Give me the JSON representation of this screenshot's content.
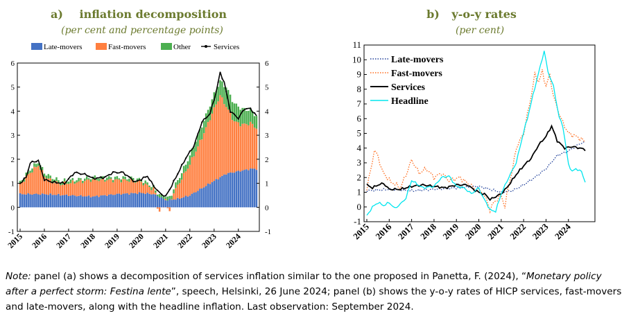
{
  "chart_data": [
    {
      "type": "bar",
      "panel_label": "a)",
      "title": "inflation decomposition",
      "subtitle": "(per cent and percentage points)",
      "ylim": [
        -1,
        6
      ],
      "yticks": [
        "-1",
        "0",
        "1",
        "2",
        "3",
        "4",
        "5",
        "6"
      ],
      "xtick_labels": [
        "2015",
        "2016",
        "2017",
        "2018",
        "2019",
        "2020",
        "2021",
        "2022",
        "2023",
        "2024"
      ],
      "x_start": "2015-01",
      "x_end": "2024-09",
      "stacked": true,
      "legend_position": "top",
      "colors": {
        "late": "#4472c4",
        "fast": "#ff7f3f",
        "other": "#4caf50",
        "services": "#000000"
      },
      "legend": [
        "Late-movers",
        "Fast-movers",
        "Other",
        "Services"
      ],
      "series": [
        {
          "name": "Late-movers",
          "anchors": [
            [
              0,
              0.55
            ],
            [
              12,
              0.55
            ],
            [
              24,
              0.5
            ],
            [
              36,
              0.45
            ],
            [
              48,
              0.55
            ],
            [
              60,
              0.6
            ],
            [
              66,
              0.55
            ],
            [
              70,
              0.4
            ],
            [
              72,
              0.3
            ],
            [
              78,
              0.35
            ],
            [
              84,
              0.5
            ],
            [
              90,
              0.8
            ],
            [
              96,
              1.1
            ],
            [
              102,
              1.4
            ],
            [
              108,
              1.5
            ],
            [
              114,
              1.6
            ],
            [
              117,
              1.6
            ]
          ]
        },
        {
          "name": "Fast-movers",
          "anchors": [
            [
              0,
              0.4
            ],
            [
              5,
              0.9
            ],
            [
              9,
              1.2
            ],
            [
              12,
              0.75
            ],
            [
              15,
              0.6
            ],
            [
              20,
              0.45
            ],
            [
              30,
              0.6
            ],
            [
              36,
              0.7
            ],
            [
              46,
              0.6
            ],
            [
              54,
              0.55
            ],
            [
              60,
              0.45
            ],
            [
              66,
              0.2
            ],
            [
              69,
              -0.15
            ],
            [
              72,
              0.1
            ],
            [
              74,
              -0.2
            ],
            [
              76,
              0.3
            ],
            [
              80,
              0.8
            ],
            [
              84,
              1.3
            ],
            [
              90,
              2.1
            ],
            [
              96,
              3.0
            ],
            [
              99,
              3.4
            ],
            [
              102,
              2.8
            ],
            [
              106,
              2.1
            ],
            [
              110,
              1.9
            ],
            [
              114,
              1.9
            ],
            [
              117,
              1.7
            ]
          ]
        },
        {
          "name": "Other",
          "anchors": [
            [
              0,
              0.1
            ],
            [
              9,
              0.15
            ],
            [
              30,
              0.1
            ],
            [
              60,
              0.1
            ],
            [
              66,
              0.1
            ],
            [
              72,
              0.1
            ],
            [
              80,
              0.25
            ],
            [
              90,
              0.5
            ],
            [
              96,
              0.6
            ],
            [
              99,
              0.6
            ],
            [
              102,
              0.8
            ],
            [
              108,
              0.7
            ],
            [
              114,
              0.55
            ],
            [
              117,
              0.5
            ]
          ]
        },
        {
          "name": "Services",
          "anchors": [
            [
              0,
              1.0
            ],
            [
              3,
              1.25
            ],
            [
              5,
              1.85
            ],
            [
              9,
              1.95
            ],
            [
              12,
              1.15
            ],
            [
              16,
              1.05
            ],
            [
              22,
              1.0
            ],
            [
              27,
              1.45
            ],
            [
              33,
              1.35
            ],
            [
              36,
              1.2
            ],
            [
              42,
              1.25
            ],
            [
              46,
              1.45
            ],
            [
              51,
              1.45
            ],
            [
              57,
              1.05
            ],
            [
              63,
              1.3
            ],
            [
              66,
              0.9
            ],
            [
              69,
              0.6
            ],
            [
              72,
              0.45
            ],
            [
              75,
              0.9
            ],
            [
              78,
              1.4
            ],
            [
              82,
              2.05
            ],
            [
              86,
              2.55
            ],
            [
              90,
              3.55
            ],
            [
              94,
              3.9
            ],
            [
              97,
              4.8
            ],
            [
              99,
              5.6
            ],
            [
              101,
              5.2
            ],
            [
              104,
              4.0
            ],
            [
              108,
              3.7
            ],
            [
              111,
              4.1
            ],
            [
              114,
              4.1
            ],
            [
              117,
              3.8
            ]
          ]
        }
      ]
    },
    {
      "type": "line",
      "panel_label": "b)",
      "title": "y-o-y rates",
      "subtitle": "(per cent)",
      "ylim": [
        -1,
        11
      ],
      "yticks": [
        "-1",
        "0",
        "1",
        "2",
        "3",
        "4",
        "5",
        "6",
        "7",
        "8",
        "9",
        "10",
        "11"
      ],
      "xtick_labels": [
        "2015",
        "2016",
        "2017",
        "2018",
        "2019",
        "2020",
        "2021",
        "2022",
        "2023",
        "2024"
      ],
      "x_start": "2015-01",
      "x_end": "2024-09",
      "legend_position": "top-left",
      "legend": [
        "Late-movers",
        "Fast-movers",
        "Services",
        "Headline"
      ],
      "series": [
        {
          "name": "Late-movers",
          "color": "#1f3f99",
          "style": "dotted",
          "anchors": [
            [
              0,
              1.1
            ],
            [
              12,
              1.2
            ],
            [
              24,
              1.1
            ],
            [
              36,
              1.2
            ],
            [
              48,
              1.3
            ],
            [
              60,
              1.4
            ],
            [
              72,
              1.0
            ],
            [
              78,
              1.1
            ],
            [
              84,
              1.5
            ],
            [
              90,
              2.0
            ],
            [
              96,
              2.6
            ],
            [
              102,
              3.5
            ],
            [
              108,
              3.8
            ],
            [
              114,
              4.3
            ],
            [
              117,
              4.4
            ]
          ]
        },
        {
          "name": "Fast-movers",
          "color": "#ff6a1a",
          "style": "dotted",
          "anchors": [
            [
              0,
              1.2
            ],
            [
              2,
              2.5
            ],
            [
              4,
              3.8
            ],
            [
              6,
              3.5
            ],
            [
              8,
              2.5
            ],
            [
              12,
              1.8
            ],
            [
              18,
              1.3
            ],
            [
              22,
              2.5
            ],
            [
              24,
              3.2
            ],
            [
              28,
              2.3
            ],
            [
              32,
              2.6
            ],
            [
              36,
              2.0
            ],
            [
              40,
              2.3
            ],
            [
              44,
              1.8
            ],
            [
              50,
              2.0
            ],
            [
              54,
              1.6
            ],
            [
              58,
              1.2
            ],
            [
              62,
              1.0
            ],
            [
              64,
              0.5
            ],
            [
              66,
              -0.2
            ],
            [
              68,
              0.3
            ],
            [
              72,
              0.8
            ],
            [
              74,
              0.0
            ],
            [
              76,
              1.5
            ],
            [
              78,
              2.5
            ],
            [
              80,
              4.0
            ],
            [
              84,
              5.0
            ],
            [
              88,
              7.5
            ],
            [
              90,
              9.0
            ],
            [
              92,
              8.5
            ],
            [
              94,
              9.2
            ],
            [
              96,
              8.2
            ],
            [
              98,
              9.0
            ],
            [
              100,
              7.5
            ],
            [
              104,
              6.0
            ],
            [
              108,
              5.0
            ],
            [
              112,
              4.8
            ],
            [
              115,
              4.6
            ],
            [
              117,
              4.4
            ]
          ]
        },
        {
          "name": "Services",
          "color": "#000000",
          "style": "solid",
          "anchors": [
            [
              0,
              1.5
            ],
            [
              3,
              1.3
            ],
            [
              6,
              1.5
            ],
            [
              9,
              1.6
            ],
            [
              12,
              1.2
            ],
            [
              18,
              1.2
            ],
            [
              24,
              1.4
            ],
            [
              30,
              1.5
            ],
            [
              36,
              1.4
            ],
            [
              42,
              1.3
            ],
            [
              48,
              1.5
            ],
            [
              54,
              1.5
            ],
            [
              57,
              1.2
            ],
            [
              60,
              1.0
            ],
            [
              64,
              0.8
            ],
            [
              66,
              0.5
            ],
            [
              69,
              0.7
            ],
            [
              72,
              0.9
            ],
            [
              75,
              1.3
            ],
            [
              80,
              2.2
            ],
            [
              84,
              2.8
            ],
            [
              88,
              3.3
            ],
            [
              92,
              4.2
            ],
            [
              96,
              4.8
            ],
            [
              99,
              5.5
            ],
            [
              102,
              4.5
            ],
            [
              106,
              4.0
            ],
            [
              110,
              4.1
            ],
            [
              114,
              4.0
            ],
            [
              117,
              3.9
            ]
          ]
        },
        {
          "name": "Headline",
          "color": "#00e5ee",
          "style": "solid",
          "anchors": [
            [
              0,
              -0.6
            ],
            [
              3,
              0.0
            ],
            [
              6,
              0.3
            ],
            [
              9,
              0.1
            ],
            [
              12,
              0.3
            ],
            [
              15,
              -0.1
            ],
            [
              18,
              0.2
            ],
            [
              21,
              0.6
            ],
            [
              24,
              1.8
            ],
            [
              30,
              1.3
            ],
            [
              36,
              1.4
            ],
            [
              40,
              2.0
            ],
            [
              44,
              2.1
            ],
            [
              48,
              1.4
            ],
            [
              52,
              1.3
            ],
            [
              56,
              0.9
            ],
            [
              60,
              1.3
            ],
            [
              62,
              0.7
            ],
            [
              64,
              0.3
            ],
            [
              66,
              -0.2
            ],
            [
              69,
              -0.3
            ],
            [
              72,
              0.9
            ],
            [
              76,
              2.0
            ],
            [
              80,
              3.0
            ],
            [
              84,
              5.1
            ],
            [
              86,
              6.0
            ],
            [
              90,
              8.1
            ],
            [
              93,
              9.6
            ],
            [
              95,
              10.6
            ],
            [
              97,
              9.2
            ],
            [
              100,
              8.2
            ],
            [
              103,
              6.1
            ],
            [
              105,
              5.5
            ],
            [
              108,
              2.9
            ],
            [
              110,
              2.4
            ],
            [
              112,
              2.6
            ],
            [
              115,
              2.4
            ],
            [
              117,
              1.7
            ]
          ]
        }
      ]
    }
  ],
  "note": {
    "prefix": "Note:",
    "text1": " panel (a) shows a decomposition of services inflation similar to the one proposed in Panetta, F. (2024), “",
    "title_italic": "Monetary policy after a perfect storm: Festina lente",
    "text2": "”, speech, Helsinki, 26 June 2024; panel (b) shows the y-o-y rates of HICP services, fast-movers and late-movers, along with the headline inflation. Last observation: September 2024."
  }
}
